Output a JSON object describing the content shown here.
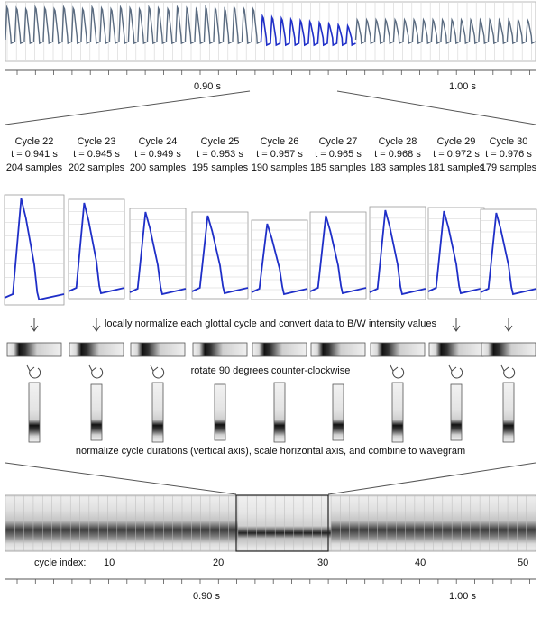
{
  "top_axis": {
    "tick_labels": [
      "0.90 s",
      "1.00 s"
    ]
  },
  "cycles": [
    {
      "name": "Cycle 22",
      "time": "t = 0.941 s",
      "samples": "204 samples",
      "peak": 0.92
    },
    {
      "name": "Cycle 23",
      "time": "t = 0.945 s",
      "samples": "202 samples",
      "peak": 0.82
    },
    {
      "name": "Cycle 24",
      "time": "t = 0.949 s",
      "samples": "200 samples",
      "peak": 0.74
    },
    {
      "name": "Cycle 25",
      "time": "t = 0.953 s",
      "samples": "195 samples",
      "peak": 0.7
    },
    {
      "name": "Cycle 26",
      "time": "t = 0.957 s",
      "samples": "190 samples",
      "peak": 0.63
    },
    {
      "name": "Cycle 27",
      "time": "t = 0.965 s",
      "samples": "185 samples",
      "peak": 0.7
    },
    {
      "name": "Cycle 28",
      "time": "t = 0.968 s",
      "samples": "183 samples",
      "peak": 0.76
    },
    {
      "name": "Cycle 29",
      "time": "t = 0.972 s",
      "samples": "181 samples",
      "peak": 0.74
    },
    {
      "name": "Cycle 30",
      "time": "t = 0.976 s",
      "samples": "179 samples",
      "peak": 0.73
    }
  ],
  "steps": {
    "normalize": "locally normalize each glottal cycle and convert data to B/W intensity values",
    "rotate": "rotate 90 degrees counter-clockwise",
    "combine": "normalize cycle durations (vertical axis), scale horizontal axis, and combine to wavegram"
  },
  "wavegram_axis": {
    "title": "cycle index:",
    "ticks": [
      "10",
      "20",
      "30",
      "40",
      "50"
    ]
  },
  "bottom_axis": {
    "tick_labels": [
      "0.90 s",
      "1.00 s"
    ]
  },
  "icons": {
    "down": "down-arrow-icon",
    "rotate": "rotate-ccw-icon"
  },
  "colors": {
    "signal_blue": "#1f2fc8",
    "signal_gray": "#5a6b80",
    "grid": "#c8c8c8"
  }
}
